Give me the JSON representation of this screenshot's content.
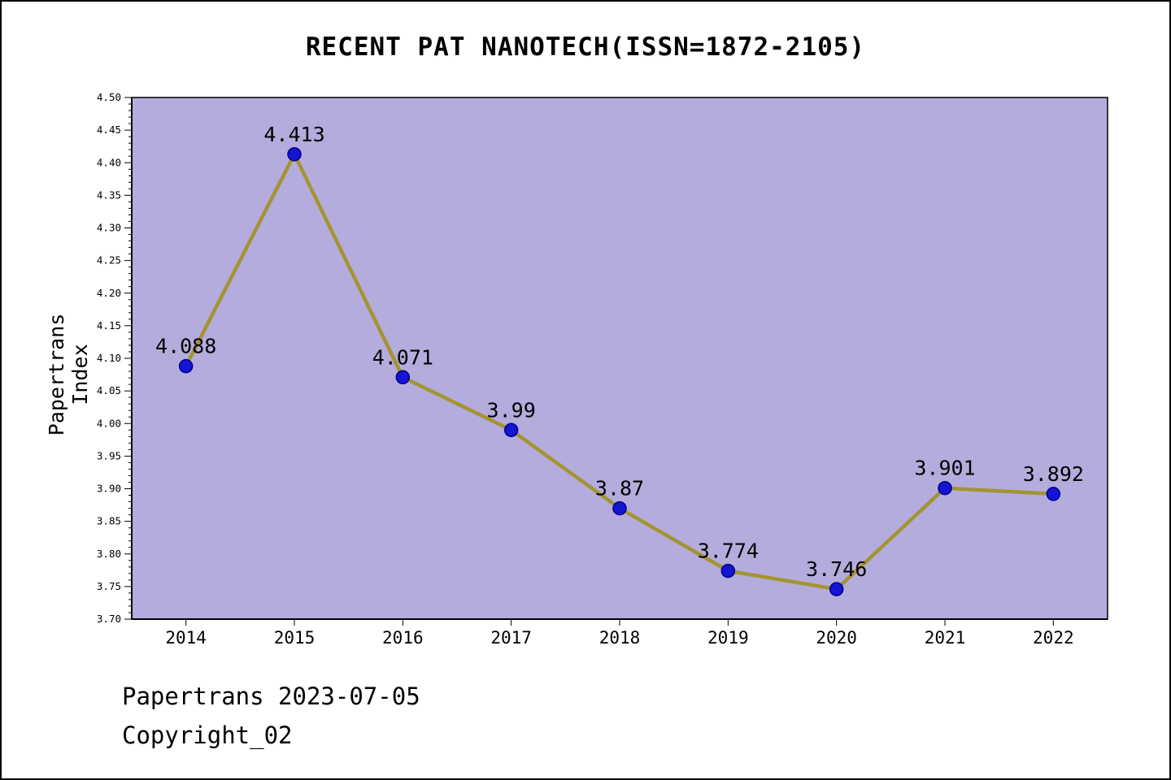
{
  "title": "RECENT PAT NANOTECH(ISSN=1872-2105)",
  "footer": {
    "line1": "Papertrans 2023-07-05",
    "line2": "Copyright_02"
  },
  "chart_data": {
    "type": "line",
    "x": [
      2014,
      2015,
      2016,
      2017,
      2018,
      2019,
      2020,
      2021,
      2022
    ],
    "values": [
      4.088,
      4.413,
      4.071,
      3.99,
      3.87,
      3.774,
      3.746,
      3.901,
      3.892
    ],
    "point_labels": [
      "4.088",
      "4.413",
      "4.071",
      "3.99",
      "3.87",
      "3.774",
      "3.746",
      "3.901",
      "3.892"
    ],
    "series_name": "Papertrans Index",
    "title": "RECENT PAT NANOTECH(ISSN=1872-2105)",
    "xlabel": "",
    "ylabel": "Papertrans Index",
    "ylim": [
      3.7,
      4.5
    ],
    "ytick_step": 0.05,
    "yminor_step": 0.01,
    "grid": false,
    "legend": "none",
    "colors": {
      "plot_bg": "#b4acdc",
      "line": "#a49431",
      "marker_fill": "#1414d2",
      "marker_edge": "#00008b",
      "text": "#000000"
    }
  }
}
